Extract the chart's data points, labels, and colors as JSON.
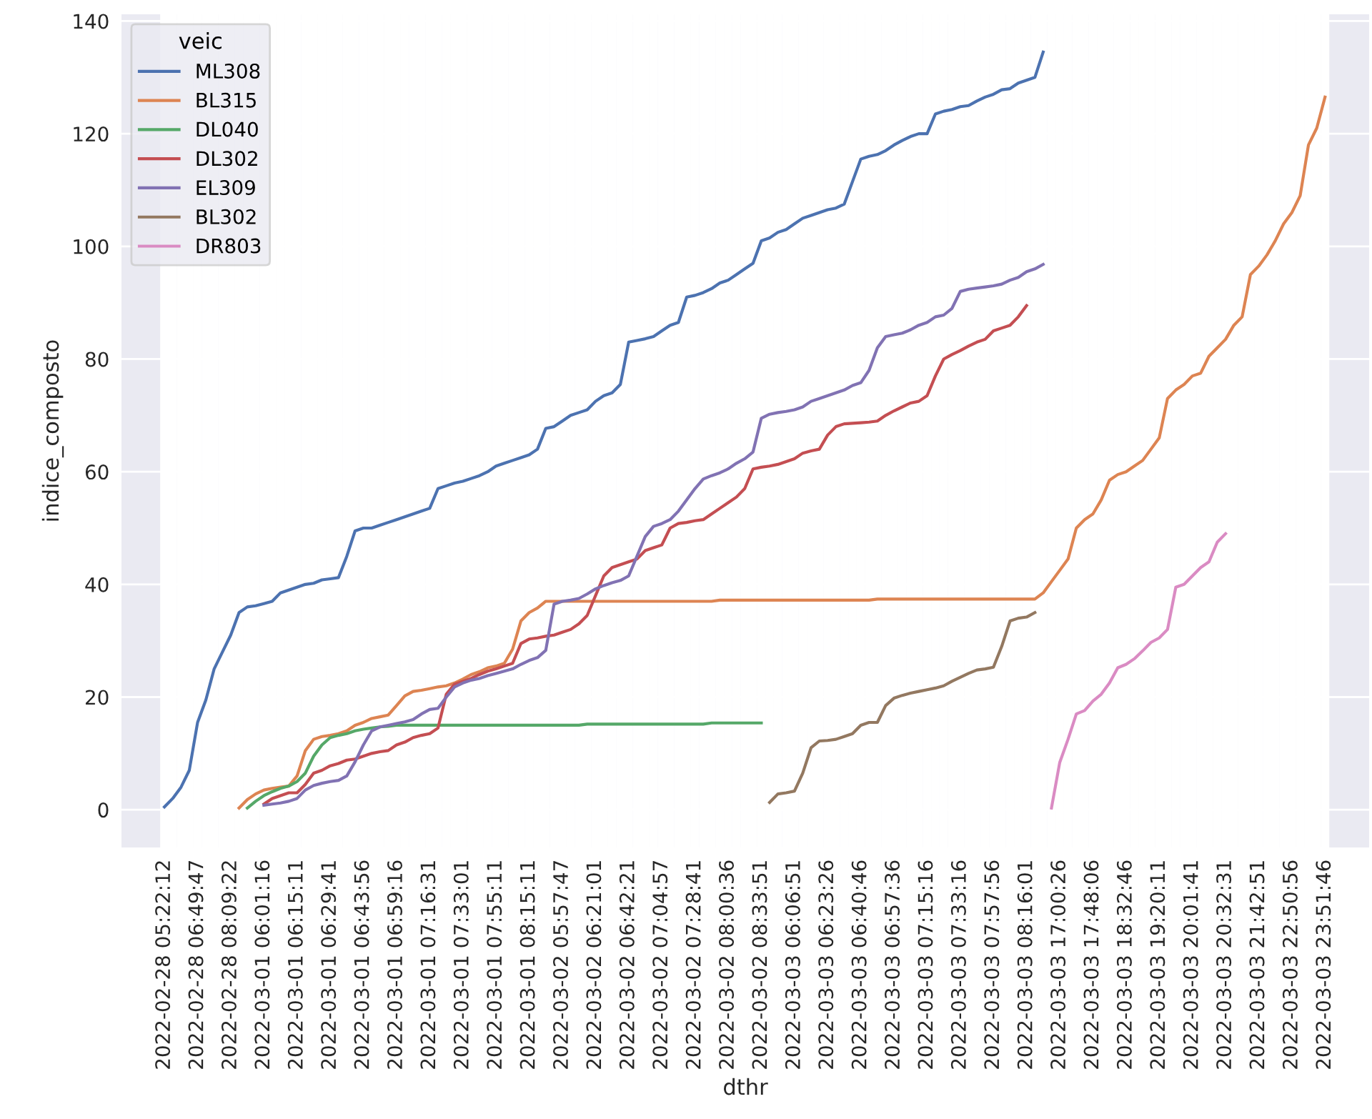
{
  "chart_data": {
    "type": "line",
    "xlabel": "dthr",
    "ylabel": "indice_composto",
    "legend_title": "veic",
    "legend": "top left",
    "grid": true,
    "categories": [
      "2022-02-28 05:22:12",
      null,
      null,
      null,
      "2022-02-28 06:49:47",
      null,
      null,
      null,
      "2022-02-28 08:09:22",
      null,
      null,
      null,
      "2022-03-01 06:01:16",
      null,
      null,
      null,
      "2022-03-01 06:15:11",
      null,
      null,
      null,
      "2022-03-01 06:29:41",
      null,
      null,
      null,
      "2022-03-01 06:43:56",
      null,
      null,
      null,
      "2022-03-01 06:59:16",
      null,
      null,
      null,
      "2022-03-01 07:16:31",
      null,
      null,
      null,
      "2022-03-01 07:33:01",
      null,
      null,
      null,
      "2022-03-01 07:55:11",
      null,
      null,
      null,
      "2022-03-01 08:15:11",
      null,
      null,
      null,
      "2022-03-02 05:57:47",
      null,
      null,
      null,
      "2022-03-02 06:21:01",
      null,
      null,
      null,
      "2022-03-02 06:42:21",
      null,
      null,
      null,
      "2022-03-02 07:04:57",
      null,
      null,
      null,
      "2022-03-02 07:28:41",
      null,
      null,
      null,
      "2022-03-02 08:00:36",
      null,
      null,
      null,
      "2022-03-02 08:33:51",
      null,
      null,
      null,
      "2022-03-03 06:06:51",
      null,
      null,
      null,
      "2022-03-03 06:23:26",
      null,
      null,
      null,
      "2022-03-03 06:40:46",
      null,
      null,
      null,
      "2022-03-03 06:57:36",
      null,
      null,
      null,
      "2022-03-03 07:15:16",
      null,
      null,
      null,
      "2022-03-03 07:33:16",
      null,
      null,
      null,
      "2022-03-03 07:57:56",
      null,
      null,
      null,
      "2022-03-03 08:16:01",
      null,
      null,
      null,
      "2022-03-03 17:00:26",
      null,
      null,
      null,
      "2022-03-03 17:48:06",
      null,
      null,
      null,
      "2022-03-03 18:32:46",
      null,
      null,
      null,
      "2022-03-03 19:20:11",
      null,
      null,
      null,
      "2022-03-03 20:01:41",
      null,
      null,
      null,
      "2022-03-03 20:32:31",
      null,
      null,
      null,
      "2022-03-03 21:42:51",
      null,
      null,
      null,
      "2022-03-03 22:50:56",
      null,
      null,
      null,
      "2022-03-03 23:51:46"
    ],
    "ylim": [
      -6.7,
      141.2
    ],
    "yticks": [
      0,
      20,
      40,
      60,
      80,
      100,
      120,
      140
    ],
    "series": [
      {
        "name": "ML308",
        "color": "#4c72b0",
        "values": [
          0.5,
          2,
          4,
          7,
          15.5,
          19.5,
          25,
          28,
          31,
          35,
          36,
          36.2,
          36.6,
          37,
          38.5,
          39,
          39.5,
          40,
          40.2,
          40.8,
          41,
          41.2,
          45,
          49.5,
          50,
          50,
          50.5,
          51,
          51.5,
          52,
          52.5,
          53,
          53.5,
          57,
          57.5,
          58,
          58.3,
          58.8,
          59.3,
          60,
          61,
          61.5,
          62,
          62.5,
          63,
          64,
          67.7,
          68,
          69,
          70,
          70.5,
          71,
          72.5,
          73.5,
          74,
          75.5,
          83,
          83.3,
          83.6,
          84,
          85,
          86,
          86.5,
          91,
          91.3,
          91.8,
          92.5,
          93.5,
          94,
          95,
          96,
          97,
          101,
          101.5,
          102.5,
          103,
          104,
          105,
          105.5,
          106,
          106.5,
          106.8,
          107.5,
          111.5,
          115.5,
          116,
          116.3,
          117,
          118,
          118.8,
          119.5,
          120,
          120,
          123.5,
          124,
          124.3,
          124.8,
          125,
          125.8,
          126.5,
          127,
          127.8,
          128,
          129,
          129.5,
          130,
          134.5,
          null,
          null,
          null,
          null,
          null,
          null,
          null,
          null,
          null,
          null,
          null,
          null,
          null,
          null,
          null,
          null,
          null,
          null,
          null,
          null,
          null,
          null,
          null,
          null,
          null,
          null,
          null,
          null,
          null,
          null,
          null,
          null,
          null,
          null
        ]
      },
      {
        "name": "BL315",
        "color": "#dd8452",
        "values": [
          null,
          null,
          null,
          null,
          null,
          null,
          null,
          null,
          null,
          0.3,
          1.8,
          2.8,
          3.5,
          3.8,
          4,
          4.2,
          6,
          10.5,
          12.5,
          13,
          13.2,
          13.5,
          14,
          15,
          15.5,
          16.2,
          16.5,
          16.8,
          18.5,
          20.2,
          21,
          21.2,
          21.5,
          21.8,
          22,
          22.5,
          23.2,
          24,
          24.5,
          25.2,
          25.5,
          26,
          28.5,
          33.5,
          35,
          35.8,
          37,
          37,
          37,
          37,
          37,
          37,
          37,
          37,
          37,
          37,
          37,
          37,
          37,
          37,
          37,
          37,
          37,
          37,
          37,
          37,
          37,
          37.2,
          37.2,
          37.2,
          37.2,
          37.2,
          37.2,
          37.2,
          37.2,
          37.2,
          37.2,
          37.2,
          37.2,
          37.2,
          37.2,
          37.2,
          37.2,
          37.2,
          37.2,
          37.2,
          37.4,
          37.4,
          37.4,
          37.4,
          37.4,
          37.4,
          37.4,
          37.4,
          37.4,
          37.4,
          37.4,
          37.4,
          37.4,
          37.4,
          37.4,
          37.4,
          37.4,
          37.4,
          37.4,
          37.4,
          38.5,
          40.5,
          42.5,
          44.5,
          50,
          51.5,
          52.5,
          55,
          58.5,
          59.5,
          60,
          61,
          62,
          64,
          66,
          73,
          74.5,
          75.5,
          77,
          77.5,
          80.5,
          82,
          83.5,
          86,
          87.5,
          95,
          96.5,
          98.5,
          101,
          104,
          106,
          109,
          118,
          121,
          126.5
        ]
      },
      {
        "name": "DL040",
        "color": "#55a868",
        "values": [
          null,
          null,
          null,
          null,
          null,
          null,
          null,
          null,
          null,
          null,
          0.3,
          1.5,
          2.5,
          3.2,
          3.8,
          4.2,
          5,
          6.5,
          9.5,
          11.5,
          12.8,
          13.2,
          13.5,
          14,
          14.3,
          14.5,
          14.7,
          14.8,
          15,
          15,
          15,
          15,
          15,
          15,
          15,
          15,
          15,
          15,
          15,
          15,
          15,
          15,
          15,
          15,
          15,
          15,
          15,
          15,
          15,
          15,
          15,
          15.2,
          15.2,
          15.2,
          15.2,
          15.2,
          15.2,
          15.2,
          15.2,
          15.2,
          15.2,
          15.2,
          15.2,
          15.2,
          15.2,
          15.2,
          15.4,
          15.4,
          15.4,
          15.4,
          15.4,
          15.4,
          15.4,
          null,
          null,
          null,
          null,
          null,
          null,
          null,
          null,
          null,
          null,
          null,
          null,
          null,
          null,
          null,
          null,
          null,
          null,
          null,
          null,
          null,
          null,
          null,
          null,
          null,
          null,
          null,
          null,
          null,
          null,
          null,
          null,
          null,
          null,
          null,
          null,
          null,
          null,
          null,
          null,
          null,
          null,
          null,
          null,
          null,
          null,
          null,
          null,
          null,
          null,
          null,
          null,
          null,
          null,
          null,
          null,
          null,
          null,
          null,
          null,
          null,
          null,
          null,
          null,
          null,
          null,
          null,
          null
        ]
      },
      {
        "name": "DL302",
        "color": "#c44e52",
        "values": [
          null,
          null,
          null,
          null,
          null,
          null,
          null,
          null,
          null,
          null,
          null,
          null,
          1,
          2,
          2.5,
          3,
          3,
          4.5,
          6.5,
          7,
          7.8,
          8.2,
          8.8,
          9,
          9.5,
          10,
          10.3,
          10.5,
          11.5,
          12,
          12.8,
          13.2,
          13.5,
          14.5,
          20.5,
          22.3,
          22.8,
          23.3,
          24,
          24.6,
          25,
          25.5,
          26,
          29.5,
          30.3,
          30.5,
          30.8,
          31,
          31.5,
          32,
          33,
          34.5,
          38,
          41.5,
          43,
          43.5,
          44,
          44.5,
          46,
          46.5,
          47,
          50,
          50.8,
          51,
          51.3,
          51.5,
          52.5,
          53.5,
          54.5,
          55.5,
          57,
          60.5,
          60.8,
          61,
          61.3,
          61.8,
          62.3,
          63.3,
          63.7,
          64,
          66.5,
          68,
          68.5,
          68.6,
          68.7,
          68.8,
          69,
          70,
          70.8,
          71.5,
          72.2,
          72.5,
          73.5,
          77,
          80,
          80.8,
          81.5,
          82.3,
          83,
          83.5,
          85,
          85.5,
          86,
          87.5,
          89.5,
          null,
          null,
          null,
          null,
          null,
          null,
          null,
          null,
          null,
          null,
          null,
          null,
          null,
          null,
          null,
          null,
          null,
          null,
          null,
          null,
          null,
          null,
          null,
          null,
          null,
          null,
          null,
          null,
          null,
          null,
          null,
          null,
          null,
          null,
          null,
          null
        ]
      },
      {
        "name": "EL309",
        "color": "#8172b3",
        "values": [
          null,
          null,
          null,
          null,
          null,
          null,
          null,
          null,
          null,
          null,
          null,
          null,
          0.8,
          1,
          1.2,
          1.5,
          2,
          3.5,
          4.3,
          4.7,
          5,
          5.2,
          6,
          8.5,
          11.5,
          14,
          14.7,
          15,
          15.3,
          15.6,
          16,
          17,
          17.8,
          18,
          20,
          21.8,
          22.5,
          23,
          23.3,
          23.8,
          24.2,
          24.6,
          25,
          25.8,
          26.5,
          27,
          28.3,
          36.5,
          37,
          37.2,
          37.5,
          38.3,
          39.2,
          39.8,
          40.3,
          40.7,
          41.5,
          45,
          48.5,
          50.3,
          50.8,
          51.5,
          53,
          55,
          57,
          58.7,
          59.3,
          59.8,
          60.5,
          61.5,
          62.3,
          63.5,
          69.5,
          70.2,
          70.5,
          70.7,
          71,
          71.5,
          72.5,
          73,
          73.5,
          74,
          74.5,
          75.3,
          75.8,
          78,
          82,
          84,
          84.3,
          84.6,
          85.2,
          86,
          86.5,
          87.5,
          87.8,
          89,
          92,
          92.4,
          92.6,
          92.8,
          93,
          93.3,
          94,
          94.5,
          95.5,
          96,
          96.8,
          null,
          null,
          null,
          null,
          null,
          null,
          null,
          null,
          null,
          null,
          null,
          null,
          null,
          null,
          null,
          null,
          null,
          null,
          null,
          null,
          null,
          null,
          null,
          null,
          null,
          null,
          null,
          null,
          null,
          null,
          null,
          null,
          null,
          null
        ]
      },
      {
        "name": "BL302",
        "color": "#937860",
        "values": [
          null,
          null,
          null,
          null,
          null,
          null,
          null,
          null,
          null,
          null,
          null,
          null,
          null,
          null,
          null,
          null,
          null,
          null,
          null,
          null,
          null,
          null,
          null,
          null,
          null,
          null,
          null,
          null,
          null,
          null,
          null,
          null,
          null,
          null,
          null,
          null,
          null,
          null,
          null,
          null,
          null,
          null,
          null,
          null,
          null,
          null,
          null,
          null,
          null,
          null,
          null,
          null,
          null,
          null,
          null,
          null,
          null,
          null,
          null,
          null,
          null,
          null,
          null,
          null,
          null,
          null,
          null,
          null,
          null,
          null,
          null,
          null,
          null,
          1.3,
          2.8,
          3,
          3.3,
          6.5,
          11,
          12.2,
          12.3,
          12.5,
          13,
          13.5,
          15,
          15.5,
          15.5,
          18.5,
          19.8,
          20.3,
          20.7,
          21,
          21.3,
          21.6,
          22,
          22.8,
          23.5,
          24.2,
          24.8,
          25,
          25.3,
          29,
          33.5,
          34,
          34.2,
          35,
          null,
          null,
          null,
          null,
          null,
          null,
          null,
          null,
          null,
          null,
          null,
          null,
          null,
          null,
          null,
          null,
          null,
          null,
          null,
          null,
          null,
          null,
          null,
          null,
          null,
          null,
          null,
          null,
          null,
          null,
          null,
          null,
          null,
          null,
          null
        ]
      },
      {
        "name": "DR803",
        "color": "#da8bc3",
        "values": [
          null,
          null,
          null,
          null,
          null,
          null,
          null,
          null,
          null,
          null,
          null,
          null,
          null,
          null,
          null,
          null,
          null,
          null,
          null,
          null,
          null,
          null,
          null,
          null,
          null,
          null,
          null,
          null,
          null,
          null,
          null,
          null,
          null,
          null,
          null,
          null,
          null,
          null,
          null,
          null,
          null,
          null,
          null,
          null,
          null,
          null,
          null,
          null,
          null,
          null,
          null,
          null,
          null,
          null,
          null,
          null,
          null,
          null,
          null,
          null,
          null,
          null,
          null,
          null,
          null,
          null,
          null,
          null,
          null,
          null,
          null,
          null,
          null,
          null,
          null,
          null,
          null,
          null,
          null,
          null,
          null,
          null,
          null,
          null,
          null,
          null,
          null,
          null,
          null,
          null,
          null,
          null,
          null,
          null,
          null,
          null,
          null,
          null,
          null,
          null,
          null,
          null,
          null,
          null,
          null,
          null,
          null,
          0.3,
          8.4,
          12.5,
          17,
          17.6,
          19.3,
          20.5,
          22.5,
          25.2,
          25.8,
          26.8,
          28.2,
          29.7,
          30.5,
          32,
          39.5,
          40,
          41.5,
          43,
          44,
          47.5,
          49,
          null,
          null,
          null,
          null,
          null,
          null,
          null,
          null,
          null,
          null,
          null,
          null
        ]
      }
    ]
  }
}
